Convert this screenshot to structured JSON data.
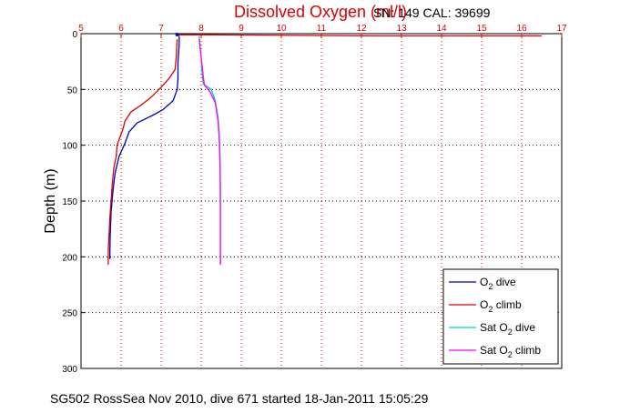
{
  "chart_data": {
    "type": "line",
    "title": "Dissolved Oxygen (ml/l)",
    "ylabel": "Depth (m)",
    "xlabel": "",
    "xlim": [
      5,
      17
    ],
    "ylim": [
      0,
      300
    ],
    "y_reversed": true,
    "x_axis_position": "top",
    "x_ticks": [
      "5",
      "6",
      "7",
      "8",
      "9",
      "10",
      "11",
      "12",
      "13",
      "14",
      "15",
      "16",
      "17"
    ],
    "y_ticks": [
      "0",
      "50",
      "100",
      "150",
      "200",
      "250",
      "300"
    ],
    "grid": true,
    "legend_position": "bottom-right",
    "series": [
      {
        "name": "O2 dive",
        "label_main": "O",
        "label_sub": "2",
        "label_suffix": " dive",
        "color": "#0000bb",
        "points": [
          [
            7.45,
            2
          ],
          [
            7.45,
            10
          ],
          [
            7.42,
            25
          ],
          [
            7.42,
            40
          ],
          [
            7.4,
            50
          ],
          [
            7.3,
            60
          ],
          [
            7.05,
            68
          ],
          [
            6.8,
            73
          ],
          [
            6.4,
            80
          ],
          [
            6.2,
            88
          ],
          [
            6.1,
            98
          ],
          [
            5.95,
            110
          ],
          [
            5.85,
            125
          ],
          [
            5.8,
            140
          ],
          [
            5.75,
            160
          ],
          [
            5.73,
            180
          ],
          [
            5.72,
            195
          ],
          [
            5.72,
            202
          ]
        ]
      },
      {
        "name": "O2 climb",
        "label_main": "O",
        "label_sub": "2",
        "label_suffix": " climb",
        "color": "#dd0000",
        "points": [
          [
            5.68,
            207
          ],
          [
            5.68,
            195
          ],
          [
            5.7,
            180
          ],
          [
            5.72,
            165
          ],
          [
            5.75,
            150
          ],
          [
            5.78,
            135
          ],
          [
            5.82,
            120
          ],
          [
            5.88,
            110
          ],
          [
            5.9,
            100
          ],
          [
            5.98,
            92
          ],
          [
            6.05,
            85
          ],
          [
            6.1,
            78
          ],
          [
            6.25,
            70
          ],
          [
            6.5,
            64
          ],
          [
            6.75,
            57
          ],
          [
            7.0,
            48
          ],
          [
            7.2,
            40
          ],
          [
            7.35,
            32
          ],
          [
            7.38,
            20
          ],
          [
            7.4,
            5
          ]
        ]
      },
      {
        "name": "Sat O2 dive",
        "label_main": "Sat O",
        "label_sub": "2",
        "label_suffix": " dive",
        "color": "#00cccc",
        "points": [
          [
            7.95,
            2
          ],
          [
            7.97,
            10
          ],
          [
            8.0,
            22
          ],
          [
            8.02,
            35
          ],
          [
            8.05,
            45
          ],
          [
            8.25,
            50
          ],
          [
            8.35,
            60
          ],
          [
            8.42,
            75
          ],
          [
            8.45,
            90
          ],
          [
            8.47,
            110
          ],
          [
            8.48,
            140
          ],
          [
            8.48,
            170
          ],
          [
            8.48,
            200
          ],
          [
            8.48,
            207
          ]
        ]
      },
      {
        "name": "Sat O2 climb",
        "label_main": "Sat O",
        "label_sub": "2",
        "label_suffix": " climb",
        "color": "#ff00ff",
        "points": [
          [
            8.48,
            207
          ],
          [
            8.48,
            180
          ],
          [
            8.48,
            150
          ],
          [
            8.47,
            120
          ],
          [
            8.45,
            95
          ],
          [
            8.42,
            78
          ],
          [
            8.35,
            62
          ],
          [
            8.22,
            52
          ],
          [
            8.08,
            46
          ],
          [
            8.05,
            38
          ],
          [
            8.02,
            28
          ],
          [
            7.98,
            15
          ],
          [
            7.95,
            5
          ]
        ]
      }
    ],
    "surface_segment": {
      "color": "#dd0000",
      "points": [
        [
          7.4,
          1
        ],
        [
          8.2,
          1
        ],
        [
          12.5,
          2
        ],
        [
          16.5,
          2
        ]
      ]
    },
    "start_marker": {
      "x": 7.4,
      "y": 0,
      "color": "#0000bb"
    }
  },
  "sn_text": "SN: 149  CAL: 39699",
  "caption": "SG502 RossSea Nov 2010, dive 671 started 18-Jan-2011 15:05:29"
}
